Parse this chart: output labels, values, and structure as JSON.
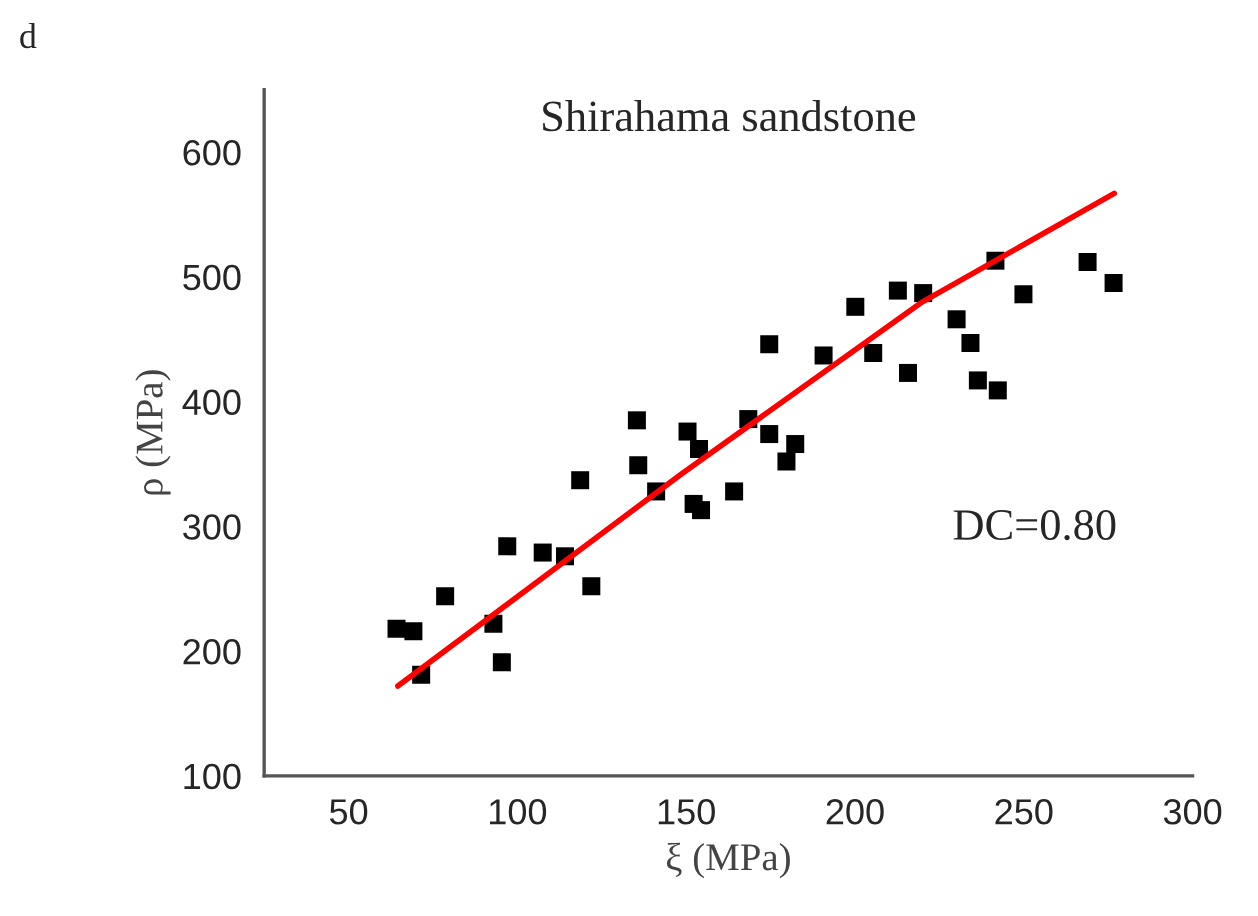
{
  "chart_data": {
    "type": "scatter",
    "title": "Shirahama sandstone",
    "xlabel": "ξ (MPa)",
    "ylabel": "ρ (MPa)",
    "annotations": [
      "d",
      "DC=0.80"
    ],
    "xlim": [
      25,
      300
    ],
    "xticks": [
      50,
      100,
      150,
      200,
      250,
      300
    ],
    "ylim": [
      100,
      650
    ],
    "yticks": [
      100,
      200,
      300,
      400,
      500,
      600
    ],
    "grid": false,
    "marker": "square",
    "series": [
      {
        "color": "#000000",
        "x": [
          64.2,
          69.2,
          71.5,
          78.6,
          92.9,
          95.4,
          97.0,
          107.5,
          114.1,
          121.9,
          118.6,
          135.4,
          135.8,
          141.1,
          150.4,
          153.8,
          152.2,
          154.4,
          164.2,
          168.4,
          174.6,
          174.6,
          179.7,
          182.3,
          190.7,
          200.1,
          205.4,
          212.7,
          220.2,
          215.7,
          230.1,
          234.2,
          236.4,
          242.3,
          241.6,
          249.9,
          268.9,
          276.6
        ],
        "values": [
          218,
          216,
          181,
          244,
          222,
          191,
          284,
          279,
          276,
          252,
          337,
          385,
          349,
          328,
          376,
          362,
          318,
          313,
          328,
          386,
          446,
          374,
          352,
          366,
          437,
          476,
          439,
          489,
          487,
          423,
          466,
          447,
          417,
          409,
          513,
          486,
          512,
          495
        ]
      },
      {
        "type": "line",
        "color": "#ff0000",
        "marker": "none",
        "x": [
          64.6,
          148.6,
          220,
          241.6,
          276.8
        ],
        "values": [
          172,
          342,
          480,
          513,
          567
        ]
      }
    ]
  }
}
